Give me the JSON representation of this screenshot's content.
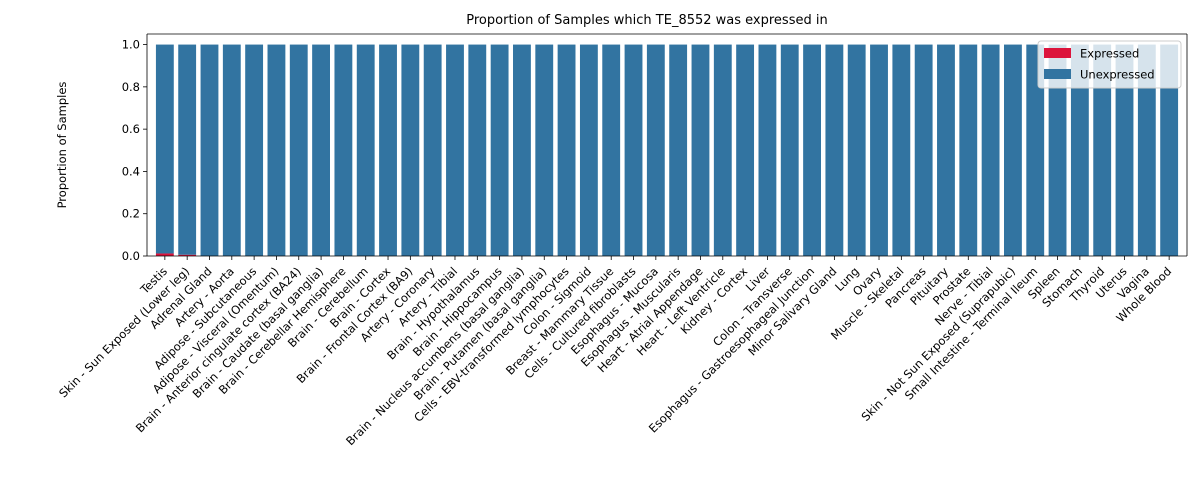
{
  "chart_data": {
    "type": "bar",
    "stacked": true,
    "title": "Proportion of Samples which TE_8552 was expressed in",
    "xlabel": "",
    "ylabel": "Proportion of Samples",
    "ylim": [
      0,
      1.05
    ],
    "yticks": [
      "0.0",
      "0.2",
      "0.4",
      "0.6",
      "0.8",
      "1.0"
    ],
    "legend_position": "top-right",
    "grid": false,
    "categories": [
      "Testis",
      "Skin - Sun Exposed (Lower leg)",
      "Adrenal Gland",
      "Artery - Aorta",
      "Adipose - Subcutaneous",
      "Adipose - Visceral (Omentum)",
      "Brain - Anterior cingulate cortex (BA24)",
      "Brain - Caudate (basal ganglia)",
      "Brain - Cerebellar Hemisphere",
      "Brain - Cerebellum",
      "Brain - Cortex",
      "Brain - Frontal Cortex (BA9)",
      "Artery - Coronary",
      "Artery - Tibial",
      "Brain - Hypothalamus",
      "Brain - Hippocampus",
      "Brain - Nucleus accumbens (basal ganglia)",
      "Brain - Putamen (basal ganglia)",
      "Cells - EBV-transformed lymphocytes",
      "Colon - Sigmoid",
      "Breast - Mammary Tissue",
      "Cells - Cultured fibroblasts",
      "Esophagus - Mucosa",
      "Esophagus - Muscularis",
      "Heart - Atrial Appendage",
      "Heart - Left Ventricle",
      "Kidney - Cortex",
      "Liver",
      "Colon - Transverse",
      "Esophagus - Gastroesophageal Junction",
      "Minor Salivary Gland",
      "Lung",
      "Ovary",
      "Muscle - Skeletal",
      "Pancreas",
      "Pituitary",
      "Prostate",
      "Nerve - Tibial",
      "Skin - Not Sun Exposed (Suprapubic)",
      "Small Intestine - Terminal Ileum",
      "Spleen",
      "Stomach",
      "Thyroid",
      "Uterus",
      "Vagina",
      "Whole Blood"
    ],
    "series": [
      {
        "name": "Expressed",
        "color": "#dc143c",
        "values": [
          0.012,
          0.006,
          0,
          0,
          0,
          0,
          0,
          0,
          0,
          0,
          0,
          0,
          0,
          0,
          0,
          0,
          0,
          0,
          0,
          0,
          0,
          0,
          0,
          0,
          0,
          0,
          0,
          0,
          0,
          0,
          0,
          0,
          0,
          0,
          0,
          0,
          0,
          0,
          0,
          0,
          0,
          0,
          0,
          0,
          0,
          0
        ]
      },
      {
        "name": "Unexpressed",
        "color": "#3274a1",
        "values": [
          0.988,
          0.994,
          1,
          1,
          1,
          1,
          1,
          1,
          1,
          1,
          1,
          1,
          1,
          1,
          1,
          1,
          1,
          1,
          1,
          1,
          1,
          1,
          1,
          1,
          1,
          1,
          1,
          1,
          1,
          1,
          1,
          1,
          1,
          1,
          1,
          1,
          1,
          1,
          1,
          1,
          1,
          1,
          1,
          1,
          1,
          1
        ]
      }
    ]
  }
}
